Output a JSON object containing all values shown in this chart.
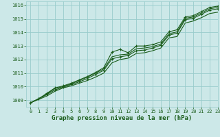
{
  "bg_color": "#cce8e8",
  "grid_color": "#99cccc",
  "line_color": "#1a5c1a",
  "xlabel": "Graphe pression niveau de la mer (hPa)",
  "xlim": [
    -0.5,
    23
  ],
  "ylim": [
    1008.5,
    1016.3
  ],
  "yticks": [
    1009,
    1010,
    1011,
    1012,
    1013,
    1014,
    1015,
    1016
  ],
  "xticks": [
    0,
    1,
    2,
    3,
    4,
    5,
    6,
    7,
    8,
    9,
    10,
    11,
    12,
    13,
    14,
    15,
    16,
    17,
    18,
    19,
    20,
    21,
    22,
    23
  ],
  "series": [
    [
      1008.8,
      1009.1,
      1009.5,
      1009.9,
      1010.05,
      1010.25,
      1010.5,
      1010.75,
      1011.05,
      1011.4,
      1012.55,
      1012.75,
      1012.5,
      1013.0,
      1013.0,
      1013.1,
      1013.3,
      1014.05,
      1014.2,
      1015.15,
      1015.25,
      1015.55,
      1015.85,
      1015.95
    ],
    [
      1008.8,
      1009.1,
      1009.45,
      1009.85,
      1010.0,
      1010.2,
      1010.45,
      1010.7,
      1011.0,
      1011.3,
      1012.2,
      1012.35,
      1012.4,
      1012.8,
      1012.85,
      1012.95,
      1013.15,
      1013.9,
      1014.05,
      1015.05,
      1015.15,
      1015.45,
      1015.75,
      1015.85
    ],
    [
      1008.8,
      1009.1,
      1009.4,
      1009.75,
      1009.95,
      1010.15,
      1010.35,
      1010.6,
      1010.9,
      1011.2,
      1012.05,
      1012.2,
      1012.3,
      1012.65,
      1012.7,
      1012.85,
      1013.05,
      1013.8,
      1013.95,
      1014.95,
      1015.05,
      1015.35,
      1015.65,
      1015.75
    ],
    [
      1008.8,
      1009.05,
      1009.3,
      1009.65,
      1009.9,
      1010.05,
      1010.25,
      1010.45,
      1010.7,
      1011.0,
      1011.75,
      1012.0,
      1012.1,
      1012.45,
      1012.5,
      1012.65,
      1012.85,
      1013.6,
      1013.7,
      1014.7,
      1014.85,
      1015.1,
      1015.4,
      1015.5
    ]
  ],
  "marker_series": [
    0,
    2
  ],
  "xlabel_fontsize": 6.5,
  "tick_fontsize": 5.0,
  "tick_color": "#1a5c1a",
  "xlabel_color": "#1a5c1a"
}
